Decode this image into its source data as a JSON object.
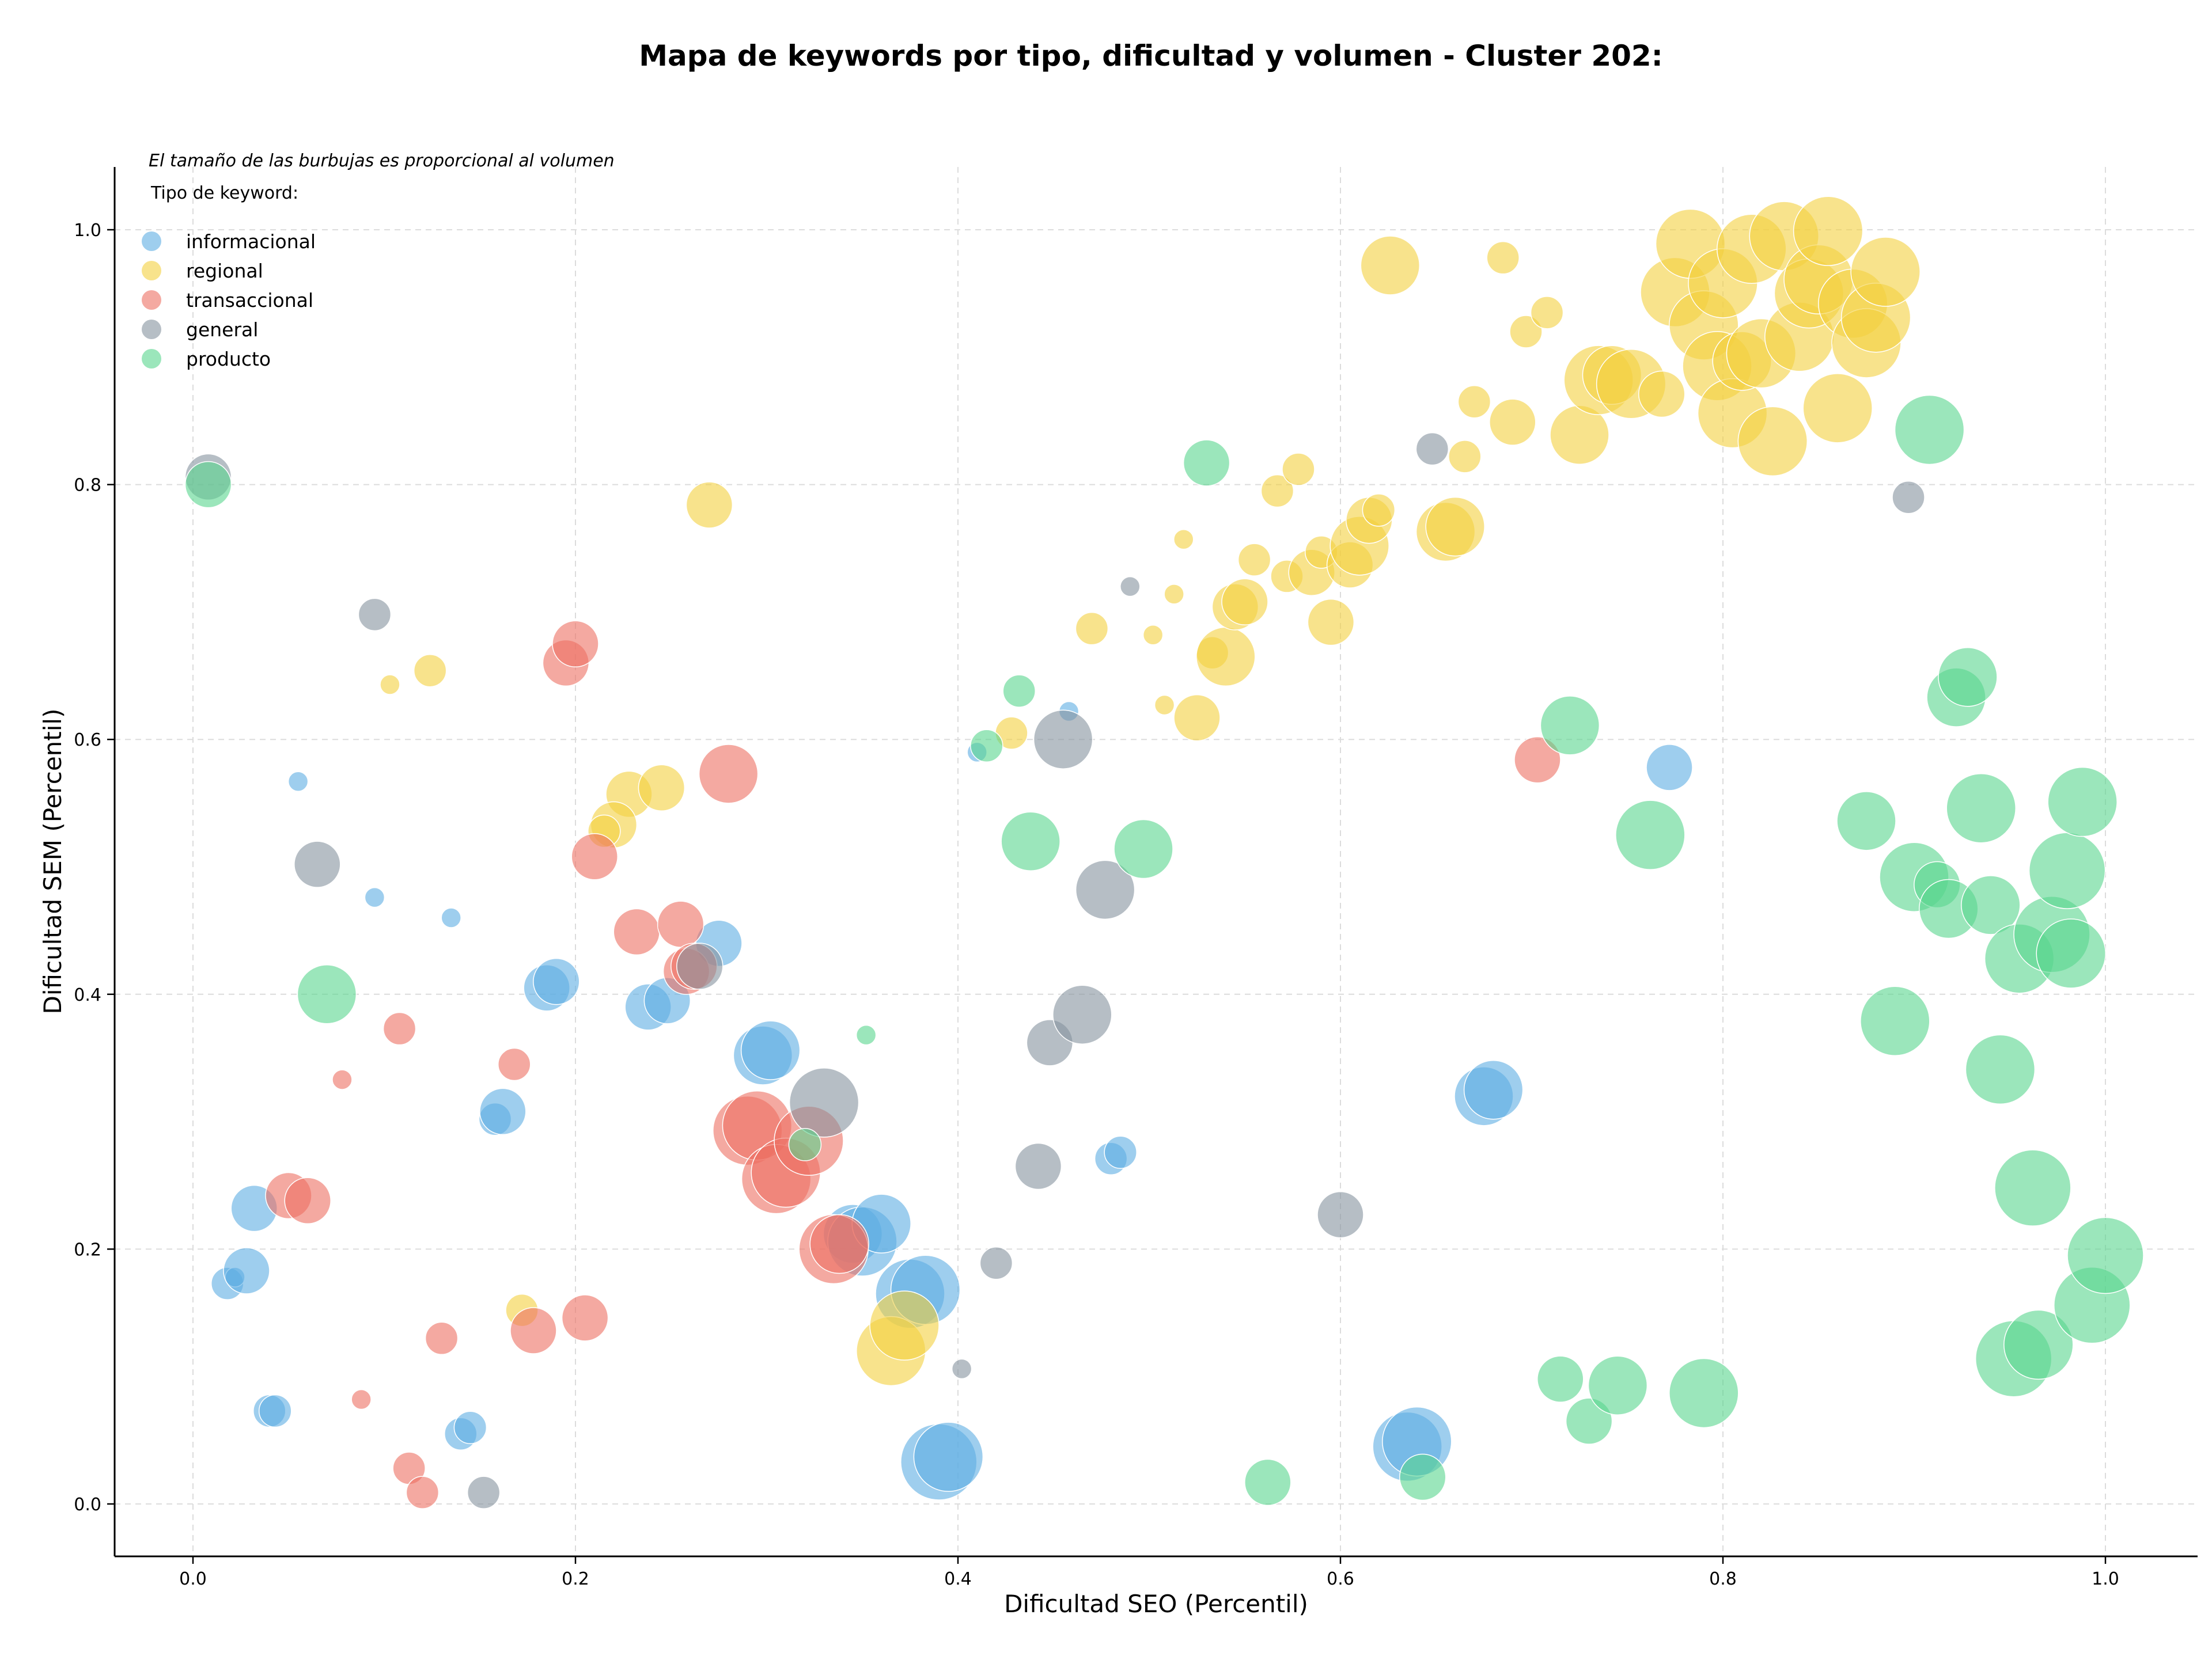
{
  "chart_data": {
    "type": "scatter",
    "title": "Mapa de keywords por tipo, dificultad y volumen - Cluster 202:",
    "xlabel": "Dificultad SEO (Percentil)",
    "ylabel": "Dificultad SEM (Percentil)",
    "xlim": [
      -0.04,
      1.05
    ],
    "ylim": [
      -0.04,
      1.05
    ],
    "xticks": [
      0.0,
      0.2,
      0.4,
      0.6,
      0.8,
      1.0
    ],
    "yticks": [
      0.0,
      0.2,
      0.4,
      0.6,
      0.8,
      1.0
    ],
    "xtick_labels": [
      "0.0",
      "0.2",
      "0.4",
      "0.6",
      "0.8",
      "1.0"
    ],
    "ytick_labels": [
      "0.0",
      "0.2",
      "0.4",
      "0.6",
      "0.8",
      "1.0"
    ],
    "grid": true,
    "legend_position": "top-left",
    "legend_title": "Tipo de keyword:",
    "size_note": "El tamaño de las burbujas es proporcional al volumen",
    "series": [
      {
        "name": "informacional",
        "color": "#5DADE2",
        "points": [
          [
            0.055,
            0.567,
            1
          ],
          [
            0.095,
            0.476,
            1
          ],
          [
            0.135,
            0.46,
            1
          ],
          [
            0.018,
            0.173,
            2
          ],
          [
            0.022,
            0.178,
            1
          ],
          [
            0.028,
            0.183,
            3
          ],
          [
            0.032,
            0.232,
            3
          ],
          [
            0.04,
            0.073,
            2
          ],
          [
            0.043,
            0.073,
            2
          ],
          [
            0.14,
            0.055,
            2
          ],
          [
            0.145,
            0.06,
            2
          ],
          [
            0.158,
            0.302,
            2
          ],
          [
            0.162,
            0.308,
            3
          ],
          [
            0.185,
            0.405,
            3
          ],
          [
            0.19,
            0.41,
            3
          ],
          [
            0.238,
            0.39,
            3
          ],
          [
            0.248,
            0.395,
            3
          ],
          [
            0.275,
            0.44,
            3
          ],
          [
            0.298,
            0.352,
            4
          ],
          [
            0.302,
            0.356,
            4
          ],
          [
            0.345,
            0.212,
            4
          ],
          [
            0.35,
            0.206,
            5
          ],
          [
            0.36,
            0.22,
            4
          ],
          [
            0.375,
            0.165,
            5
          ],
          [
            0.383,
            0.168,
            5
          ],
          [
            0.39,
            0.033,
            6
          ],
          [
            0.395,
            0.037,
            5
          ],
          [
            0.41,
            0.59,
            1
          ],
          [
            0.458,
            0.622,
            1
          ],
          [
            0.48,
            0.271,
            2
          ],
          [
            0.485,
            0.276,
            2
          ],
          [
            0.675,
            0.32,
            4
          ],
          [
            0.68,
            0.325,
            4
          ],
          [
            0.635,
            0.045,
            5
          ],
          [
            0.64,
            0.049,
            5
          ],
          [
            0.772,
            0.578,
            3
          ]
        ]
      },
      {
        "name": "regional",
        "color": "#F4D03F",
        "points": [
          [
            0.103,
            0.643,
            1
          ],
          [
            0.124,
            0.654,
            2
          ],
          [
            0.228,
            0.557,
            3
          ],
          [
            0.245,
            0.562,
            3
          ],
          [
            0.22,
            0.533,
            3
          ],
          [
            0.215,
            0.528,
            2
          ],
          [
            0.27,
            0.784,
            3
          ],
          [
            0.172,
            0.152,
            2
          ],
          [
            0.365,
            0.12,
            5
          ],
          [
            0.372,
            0.14,
            5
          ],
          [
            0.428,
            0.605,
            2
          ],
          [
            0.47,
            0.687,
            2
          ],
          [
            0.502,
            0.682,
            1
          ],
          [
            0.508,
            0.627,
            1
          ],
          [
            0.513,
            0.714,
            1
          ],
          [
            0.518,
            0.757,
            1
          ],
          [
            0.525,
            0.617,
            3
          ],
          [
            0.533,
            0.668,
            2
          ],
          [
            0.54,
            0.665,
            4
          ],
          [
            0.545,
            0.704,
            3
          ],
          [
            0.55,
            0.708,
            3
          ],
          [
            0.555,
            0.741,
            2
          ],
          [
            0.567,
            0.795,
            2
          ],
          [
            0.572,
            0.728,
            2
          ],
          [
            0.578,
            0.812,
            2
          ],
          [
            0.585,
            0.731,
            3
          ],
          [
            0.59,
            0.747,
            2
          ],
          [
            0.595,
            0.692,
            3
          ],
          [
            0.605,
            0.737,
            3
          ],
          [
            0.61,
            0.752,
            4
          ],
          [
            0.615,
            0.772,
            3
          ],
          [
            0.62,
            0.78,
            2
          ],
          [
            0.626,
            0.972,
            4
          ],
          [
            0.655,
            0.763,
            4
          ],
          [
            0.66,
            0.767,
            4
          ],
          [
            0.665,
            0.822,
            2
          ],
          [
            0.67,
            0.865,
            2
          ],
          [
            0.685,
            0.978,
            2
          ],
          [
            0.69,
            0.849,
            3
          ],
          [
            0.697,
            0.92,
            2
          ],
          [
            0.708,
            0.935,
            2
          ],
          [
            0.725,
            0.839,
            4
          ],
          [
            0.735,
            0.882,
            5
          ],
          [
            0.742,
            0.886,
            4
          ],
          [
            0.752,
            0.879,
            5
          ],
          [
            0.768,
            0.871,
            3
          ],
          [
            0.775,
            0.951,
            5
          ],
          [
            0.783,
            0.989,
            5
          ],
          [
            0.79,
            0.925,
            5
          ],
          [
            0.797,
            0.893,
            5
          ],
          [
            0.8,
            0.958,
            5
          ],
          [
            0.805,
            0.856,
            5
          ],
          [
            0.81,
            0.897,
            4
          ],
          [
            0.815,
            0.985,
            5
          ],
          [
            0.82,
            0.903,
            5
          ],
          [
            0.826,
            0.834,
            5
          ],
          [
            0.832,
            0.995,
            5
          ],
          [
            0.84,
            0.916,
            5
          ],
          [
            0.845,
            0.95,
            5
          ],
          [
            0.85,
            0.961,
            5
          ],
          [
            0.855,
            0.999,
            5
          ],
          [
            0.86,
            0.86,
            5
          ],
          [
            0.868,
            0.942,
            5
          ],
          [
            0.875,
            0.911,
            5
          ],
          [
            0.88,
            0.931,
            5
          ],
          [
            0.885,
            0.967,
            5
          ]
        ]
      },
      {
        "name": "transaccional",
        "color": "#EC7063",
        "points": [
          [
            0.05,
            0.242,
            3
          ],
          [
            0.06,
            0.238,
            3
          ],
          [
            0.078,
            0.333,
            1
          ],
          [
            0.088,
            0.082,
            1
          ],
          [
            0.108,
            0.373,
            2
          ],
          [
            0.113,
            0.028,
            2
          ],
          [
            0.12,
            0.009,
            2
          ],
          [
            0.13,
            0.13,
            2
          ],
          [
            0.168,
            0.345,
            2
          ],
          [
            0.178,
            0.136,
            3
          ],
          [
            0.195,
            0.66,
            3
          ],
          [
            0.2,
            0.675,
            3
          ],
          [
            0.205,
            0.146,
            3
          ],
          [
            0.21,
            0.508,
            3
          ],
          [
            0.232,
            0.449,
            3
          ],
          [
            0.255,
            0.455,
            3
          ],
          [
            0.258,
            0.418,
            3
          ],
          [
            0.262,
            0.422,
            3
          ],
          [
            0.28,
            0.573,
            4
          ],
          [
            0.29,
            0.293,
            5
          ],
          [
            0.295,
            0.297,
            5
          ],
          [
            0.305,
            0.255,
            5
          ],
          [
            0.31,
            0.26,
            5
          ],
          [
            0.322,
            0.285,
            5
          ],
          [
            0.335,
            0.2,
            5
          ],
          [
            0.338,
            0.204,
            4
          ],
          [
            0.703,
            0.584,
            3
          ]
        ]
      },
      {
        "name": "general",
        "color": "#85929E",
        "points": [
          [
            0.008,
            0.806,
            3
          ],
          [
            0.095,
            0.698,
            2
          ],
          [
            0.065,
            0.502,
            3
          ],
          [
            0.152,
            0.009,
            2
          ],
          [
            0.265,
            0.422,
            3
          ],
          [
            0.33,
            0.315,
            5
          ],
          [
            0.402,
            0.106,
            1
          ],
          [
            0.42,
            0.189,
            2
          ],
          [
            0.442,
            0.265,
            3
          ],
          [
            0.448,
            0.362,
            3
          ],
          [
            0.455,
            0.6,
            4
          ],
          [
            0.465,
            0.384,
            4
          ],
          [
            0.477,
            0.482,
            4
          ],
          [
            0.49,
            0.72,
            1
          ],
          [
            0.6,
            0.227,
            3
          ],
          [
            0.648,
            0.828,
            2
          ],
          [
            0.897,
            0.79,
            2
          ]
        ]
      },
      {
        "name": "producto",
        "color": "#58D68D",
        "points": [
          [
            0.008,
            0.8,
            3
          ],
          [
            0.07,
            0.4,
            4
          ],
          [
            0.32,
            0.282,
            2
          ],
          [
            0.352,
            0.368,
            1
          ],
          [
            0.415,
            0.595,
            2
          ],
          [
            0.432,
            0.638,
            2
          ],
          [
            0.438,
            0.52,
            4
          ],
          [
            0.497,
            0.514,
            4
          ],
          [
            0.53,
            0.817,
            3
          ],
          [
            0.562,
            0.017,
            3
          ],
          [
            0.643,
            0.021,
            3
          ],
          [
            0.715,
            0.098,
            3
          ],
          [
            0.72,
            0.611,
            4
          ],
          [
            0.73,
            0.065,
            3
          ],
          [
            0.745,
            0.093,
            4
          ],
          [
            0.762,
            0.525,
            5
          ],
          [
            0.79,
            0.087,
            5
          ],
          [
            0.875,
            0.536,
            4
          ],
          [
            0.89,
            0.379,
            5
          ],
          [
            0.9,
            0.492,
            5
          ],
          [
            0.908,
            0.843,
            5
          ],
          [
            0.912,
            0.486,
            3
          ],
          [
            0.918,
            0.467,
            4
          ],
          [
            0.922,
            0.633,
            4
          ],
          [
            0.928,
            0.649,
            4
          ],
          [
            0.935,
            0.546,
            5
          ],
          [
            0.94,
            0.47,
            4
          ],
          [
            0.945,
            0.341,
            5
          ],
          [
            0.952,
            0.114,
            6
          ],
          [
            0.955,
            0.428,
            5
          ],
          [
            0.962,
            0.248,
            6
          ],
          [
            0.965,
            0.125,
            5
          ],
          [
            0.972,
            0.447,
            6
          ],
          [
            0.98,
            0.497,
            6
          ],
          [
            0.982,
            0.432,
            5
          ],
          [
            0.988,
            0.551,
            5
          ],
          [
            0.993,
            0.156,
            6
          ],
          [
            1.0,
            0.195,
            6
          ]
        ]
      }
    ]
  }
}
